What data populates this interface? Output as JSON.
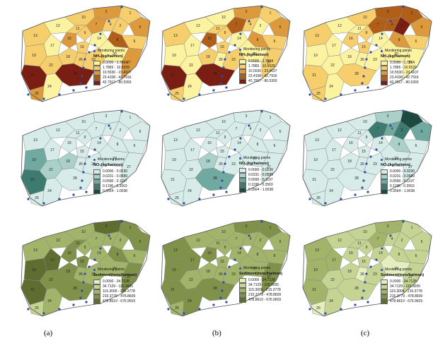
{
  "legend_common": {
    "monitoring_label": "Monitoring points"
  },
  "rows": [
    {
      "variable": "NH4",
      "title": "NH₄(kg/ha/mon)",
      "ranges": [
        "0.0000 - 1.7864",
        "1.7865 - 10.5529",
        "10.5530 - 23.4107",
        "23.4108 - 42.7916",
        "42.7917 - 80.5393"
      ],
      "colors": [
        "#fcf3a0",
        "#f6cf6c",
        "#dd9a3d",
        "#b15e19",
        "#7a1d12"
      ]
    },
    {
      "variable": "NO3",
      "title": "NO₃(kg/ha/mon)",
      "ranges": [
        "0.0000 - 0.0230",
        "0.0231 - 0.0589",
        "0.0590 - 0.1197",
        "0.1198 - 0.3563",
        "0.3564 - 1.0038"
      ],
      "colors": [
        "#d7ece8",
        "#a9d1ca",
        "#6fa9a0",
        "#3d7a70",
        "#1c4a40"
      ]
    },
    {
      "variable": "Sediment",
      "title": "Sediment(tons/ha/mon)",
      "ranges": [
        "0.0000 - 34.7128",
        "34.7129 - 115.3005",
        "115.3006 - 215.3778",
        "215.3779 - 478.8609",
        "478.8610 - 676.9603"
      ],
      "colors": [
        "#e5eec1",
        "#c6d493",
        "#a2b36a",
        "#80914a",
        "#5f6d30"
      ]
    }
  ],
  "columns": [
    {
      "caption": "(a)"
    },
    {
      "caption": "(b)"
    },
    {
      "caption": "(c)"
    }
  ],
  "watershed_labels": [
    "1",
    "2",
    "3",
    "4",
    "5",
    "6",
    "7",
    "8",
    "9",
    "10",
    "11",
    "12",
    "13",
    "14",
    "15",
    "16",
    "17",
    "18",
    "19",
    "20",
    "21",
    "22",
    "23",
    "24",
    "25",
    "26",
    "27",
    "28"
  ],
  "monitoring_count": 14,
  "class_assignments": {
    "NH4": [
      [
        1,
        1,
        2,
        1,
        2,
        1,
        2,
        3,
        1,
        1,
        1,
        0,
        1,
        0,
        1,
        2,
        0,
        1,
        1,
        0,
        4,
        1,
        1,
        0,
        2,
        1,
        2,
        4
      ],
      [
        1,
        0,
        2,
        1,
        2,
        1,
        3,
        2,
        1,
        0,
        1,
        0,
        1,
        0,
        1,
        3,
        0,
        1,
        0,
        0,
        4,
        0,
        1,
        0,
        1,
        0,
        1,
        4
      ],
      [
        3,
        4,
        3,
        3,
        2,
        1,
        3,
        2,
        1,
        1,
        0,
        0,
        1,
        0,
        1,
        1,
        0,
        0,
        0,
        0,
        1,
        0,
        0,
        0,
        1,
        0,
        0,
        1
      ]
    ],
    "NO3": [
      [
        0,
        0,
        0,
        0,
        0,
        0,
        0,
        0,
        0,
        0,
        0,
        0,
        0,
        0,
        0,
        0,
        0,
        1,
        2,
        0,
        3,
        1,
        0,
        0,
        0,
        0,
        0,
        0
      ],
      [
        0,
        0,
        0,
        0,
        0,
        0,
        0,
        0,
        0,
        0,
        0,
        0,
        0,
        0,
        0,
        0,
        0,
        1,
        0,
        0,
        0,
        0,
        0,
        0,
        0,
        0,
        0,
        2
      ],
      [
        4,
        3,
        1,
        2,
        2,
        0,
        3,
        1,
        0,
        0,
        0,
        0,
        0,
        0,
        0,
        0,
        0,
        0,
        0,
        0,
        0,
        0,
        0,
        0,
        0,
        0,
        0,
        0
      ]
    ],
    "Sediment": [
      [
        3,
        2,
        4,
        2,
        3,
        2,
        2,
        3,
        2,
        2,
        3,
        2,
        2,
        2,
        3,
        3,
        4,
        3,
        4,
        2,
        4,
        3,
        2,
        2,
        1,
        2,
        3,
        3
      ],
      [
        3,
        2,
        3,
        2,
        2,
        2,
        2,
        2,
        2,
        2,
        2,
        2,
        3,
        2,
        2,
        3,
        3,
        2,
        3,
        2,
        3,
        2,
        2,
        3,
        2,
        2,
        3,
        3
      ],
      [
        1,
        1,
        2,
        1,
        1,
        1,
        2,
        1,
        1,
        1,
        1,
        1,
        2,
        1,
        1,
        1,
        2,
        1,
        2,
        0,
        2,
        1,
        1,
        1,
        0,
        0,
        1,
        1
      ]
    ]
  }
}
